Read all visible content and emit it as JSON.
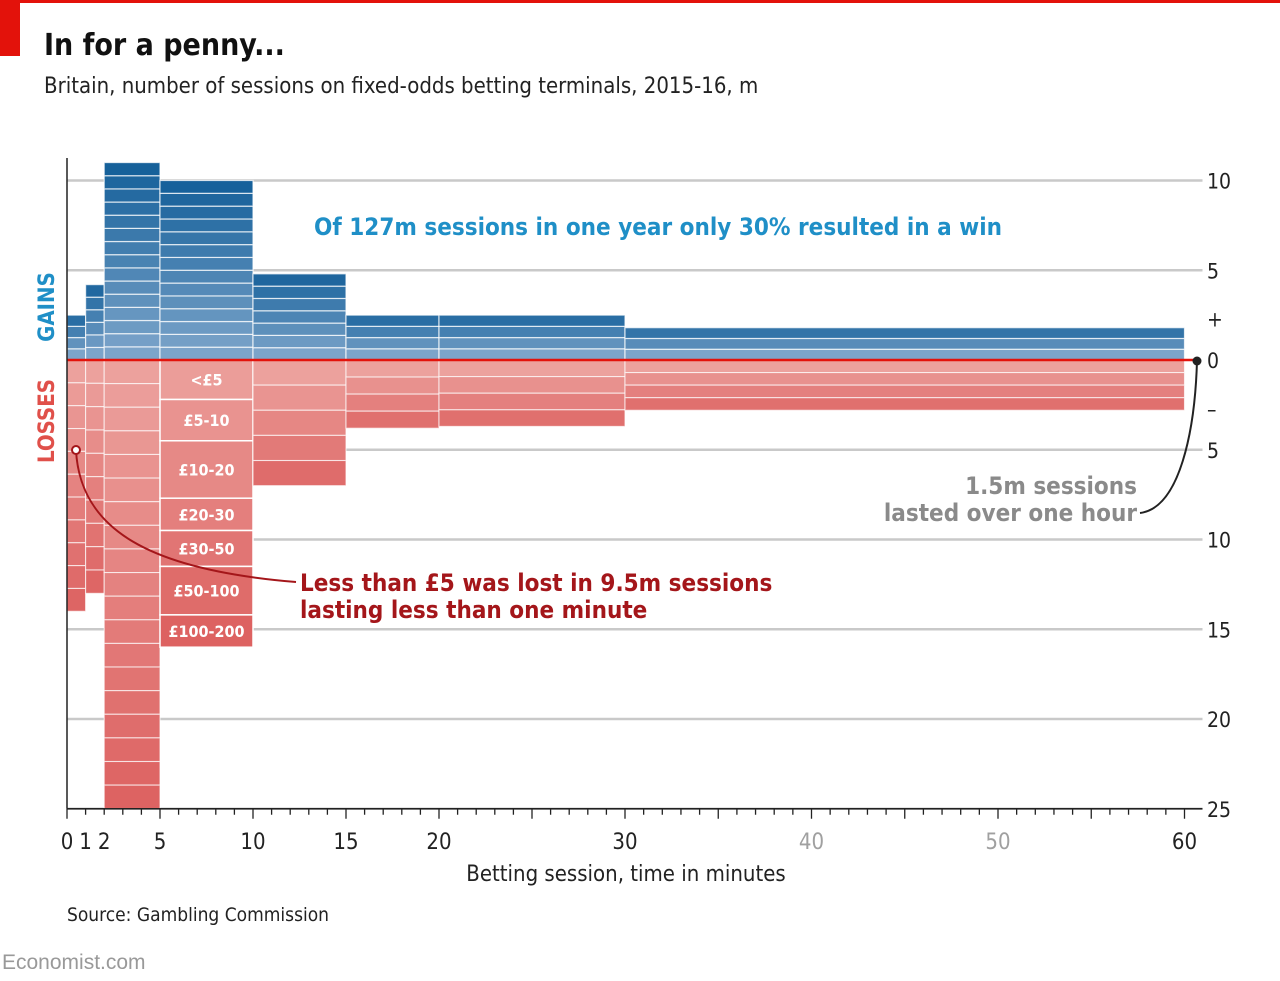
{
  "header": {
    "title": "In for a penny...",
    "subtitle": "Britain, number of sessions on fixed-odds betting terminals, 2015-16, m"
  },
  "footer": {
    "source": "Source: Gambling Commission",
    "brand": "Economist.com"
  },
  "colors": {
    "gain_dark": "#0f5c97",
    "gain_light": "#8fb1d3",
    "loss_dark": "#d95353",
    "loss_light": "#eda5a1",
    "zero_line": "#e3120b",
    "gains_label": "#1f8fc7",
    "losses_label": "#e0504a",
    "win_annotation": "#1f8fc7",
    "loss_annotation": "#a4161a",
    "hour_annotation": "#8a8a8a",
    "grid": "#c9c9c9"
  },
  "chart_data": {
    "type": "bar",
    "subtype": "diverging variable-width stacked bar",
    "xlabel": "Betting session, time in minutes",
    "x_ticks": [
      "0",
      "1",
      "2",
      "5",
      "10",
      "15",
      "20",
      "30",
      "40",
      "50",
      "60"
    ],
    "x_tick_values": [
      0,
      1,
      2,
      5,
      10,
      15,
      20,
      30,
      40,
      50,
      60
    ],
    "y_ticks_up": [
      "10",
      "5",
      "+"
    ],
    "y_ticks_up_values": [
      10,
      5,
      2.3
    ],
    "zero_label": "0",
    "y_ticks_down": [
      "–",
      "5",
      "10",
      "15",
      "20",
      "25"
    ],
    "y_ticks_down_values": [
      2.7,
      5,
      10,
      15,
      20,
      25
    ],
    "ylim": [
      -25,
      11
    ],
    "gains_label": "GAINS",
    "losses_label": "LOSSES",
    "bins": [
      {
        "x0": 0,
        "x1": 1,
        "gains": 2.5,
        "losses": 14.0
      },
      {
        "x0": 1,
        "x1": 2,
        "gains": 4.2,
        "losses": 13.0
      },
      {
        "x0": 2,
        "x1": 5,
        "gains": 11.0,
        "losses": 25.0
      },
      {
        "x0": 5,
        "x1": 10,
        "gains": 10.0,
        "losses": 16.0
      },
      {
        "x0": 10,
        "x1": 15,
        "gains": 4.8,
        "losses": 7.0
      },
      {
        "x0": 15,
        "x1": 20,
        "gains": 2.5,
        "losses": 3.8
      },
      {
        "x0": 20,
        "x1": 30,
        "gains": 2.5,
        "losses": 3.7
      },
      {
        "x0": 30,
        "x1": 60,
        "gains": 1.8,
        "losses": 2.8
      }
    ],
    "loss_bands": [
      "<£5",
      "£5-10",
      "£10-20",
      "£20-30",
      "£30-50",
      "£50-100",
      "£100-200"
    ],
    "loss_band_bounds": [
      0,
      2.2,
      4.5,
      7.7,
      9.5,
      11.5,
      14.2,
      16.0
    ],
    "annotations": {
      "win": "Of 127m sessions in one year only 30% resulted in a win",
      "under_minute_line1": "Less than £5 was lost in 9.5m sessions",
      "under_minute_line2": "lasting less than one minute",
      "over_hour_line1": "1.5m sessions",
      "over_hour_line2": "lasted over one hour"
    }
  }
}
